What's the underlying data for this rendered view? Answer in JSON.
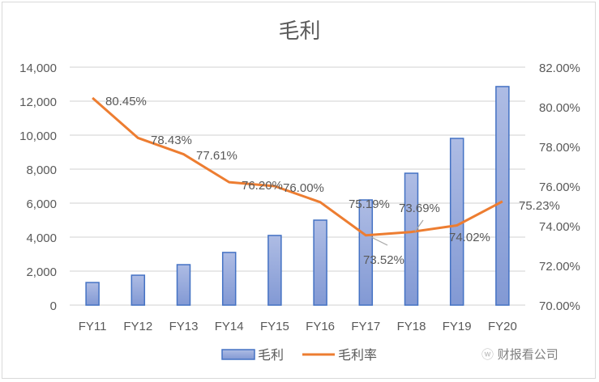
{
  "chart_data": {
    "type": "bar+line",
    "title": "毛利",
    "categories": [
      "FY11",
      "FY12",
      "FY13",
      "FY14",
      "FY15",
      "FY16",
      "FY17",
      "FY18",
      "FY19",
      "FY20"
    ],
    "series": [
      {
        "name": "毛利",
        "type": "bar",
        "axis": "left",
        "values": [
          1330,
          1760,
          2380,
          3100,
          4100,
          5000,
          6190,
          7760,
          9810,
          12860
        ],
        "color": "#8fa6d9"
      },
      {
        "name": "毛利率",
        "type": "line",
        "axis": "right",
        "values": [
          80.45,
          78.43,
          77.61,
          76.2,
          76.0,
          75.19,
          73.52,
          73.69,
          74.02,
          75.23
        ],
        "labels": [
          "80.45%",
          "78.43%",
          "77.61%",
          "76.20%",
          "76.00%",
          "75.19%",
          "73.52%",
          "73.69%",
          "74.02%",
          "75.23%"
        ],
        "color": "#ed7d31"
      }
    ],
    "left_axis": {
      "ticks": [
        "0",
        "2,000",
        "4,000",
        "6,000",
        "8,000",
        "10,000",
        "12,000",
        "14,000"
      ],
      "ylim": [
        0,
        14000
      ]
    },
    "right_axis": {
      "ticks": [
        "70.00%",
        "72.00%",
        "74.00%",
        "76.00%",
        "78.00%",
        "80.00%",
        "82.00%"
      ],
      "ylim": [
        70,
        82
      ]
    },
    "grid": true,
    "legend_position": "bottom"
  },
  "legend": {
    "bar_label": "毛利",
    "line_label": "毛利率"
  },
  "watermark": {
    "text": "财报看公司"
  }
}
